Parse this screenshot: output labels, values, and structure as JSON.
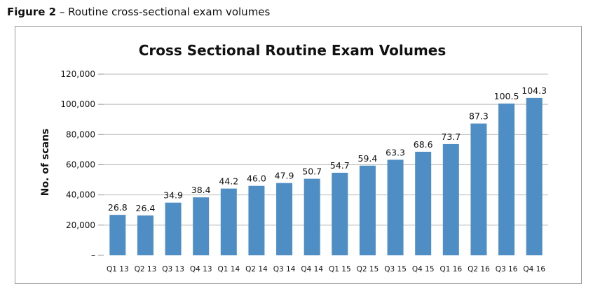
{
  "figure": {
    "number_label": "Figure 2",
    "separator": "–",
    "caption": "Routine cross-sectional exam volumes"
  },
  "chart_data": {
    "type": "bar",
    "title": "Cross Sectional Routine Exam Volumes",
    "xlabel": "",
    "ylabel": "No. of scans",
    "ylim": [
      0,
      120000
    ],
    "y_ticks": [
      0,
      20000,
      40000,
      60000,
      80000,
      100000,
      120000
    ],
    "y_tick_labels": [
      "–",
      "20,000",
      "40,000",
      "60,000",
      "80,000",
      "100,000",
      "120,000"
    ],
    "grid": true,
    "legend": "none",
    "bar_color": "#4f8ec4",
    "categories": [
      "Q1 13",
      "Q2 13",
      "Q3 13",
      "Q4 13",
      "Q1 14",
      "Q2 14",
      "Q3 14",
      "Q4 14",
      "Q1 15",
      "Q2 15",
      "Q3 15",
      "Q4 15",
      "Q1 16",
      "Q2 16",
      "Q3 16",
      "Q4 16"
    ],
    "values": [
      26800,
      26400,
      34900,
      38400,
      44200,
      46000,
      47900,
      50700,
      54700,
      59400,
      63300,
      68600,
      73700,
      87300,
      100500,
      104300
    ],
    "data_labels": [
      "26.8",
      "26.4",
      "34.9",
      "38.4",
      "44.2",
      "46.0",
      "47.9",
      "50.7",
      "54.7",
      "59.4",
      "63.3",
      "68.6",
      "73.7",
      "87.3",
      "100.5",
      "104.3"
    ]
  }
}
